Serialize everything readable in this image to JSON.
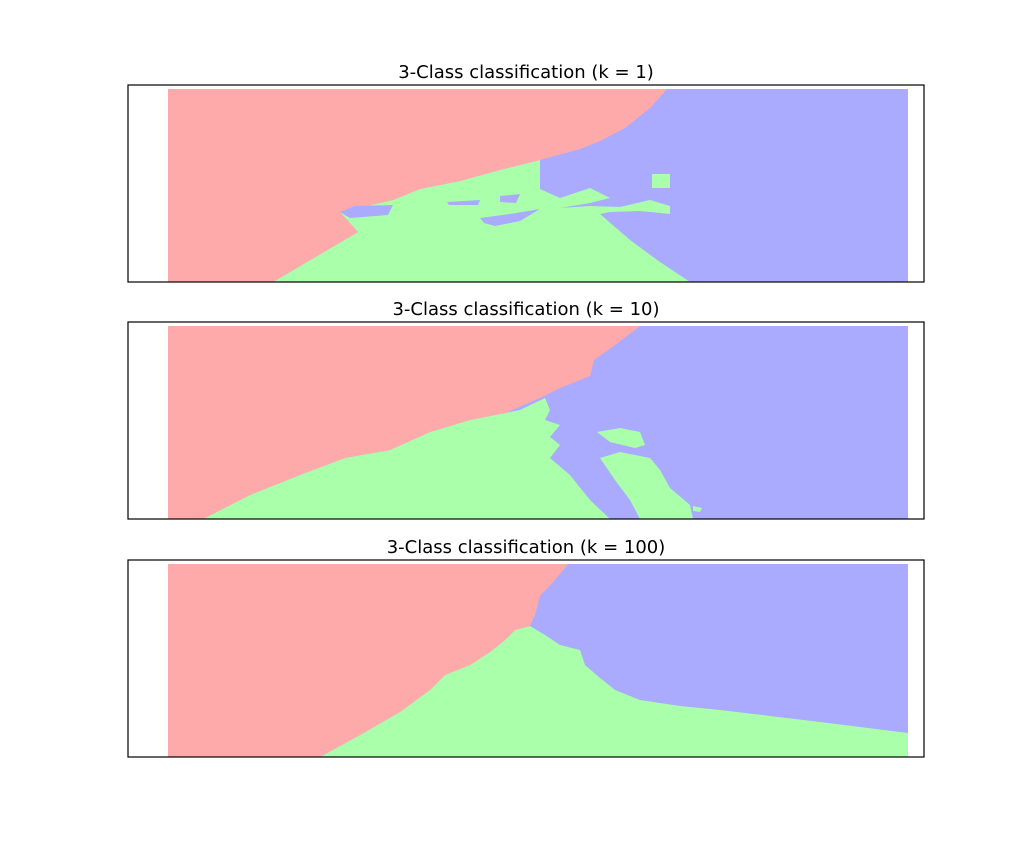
{
  "figure": {
    "background": "#ffffff"
  },
  "colors": {
    "class_0": "#ffaaaa",
    "class_1": "#aaffaa",
    "class_2": "#aaaaff",
    "frame": "#000000"
  },
  "chart_data": [
    {
      "type": "heatmap",
      "title": "3-Class classification (k = 1)",
      "xlabel": "",
      "ylabel": "",
      "x_ticks": [],
      "y_ticks": [],
      "legend": "none",
      "grid": false,
      "classes": [
        "class_0",
        "class_1",
        "class_2"
      ]
    },
    {
      "type": "heatmap",
      "title": "3-Class classification (k = 10)",
      "xlabel": "",
      "ylabel": "",
      "x_ticks": [],
      "y_ticks": [],
      "legend": "none",
      "grid": false,
      "classes": [
        "class_0",
        "class_1",
        "class_2"
      ]
    },
    {
      "type": "heatmap",
      "title": "3-Class classification (k = 100)",
      "xlabel": "",
      "ylabel": "",
      "x_ticks": [],
      "y_ticks": [],
      "legend": "none",
      "grid": false,
      "classes": [
        "class_0",
        "class_1",
        "class_2"
      ]
    }
  ]
}
